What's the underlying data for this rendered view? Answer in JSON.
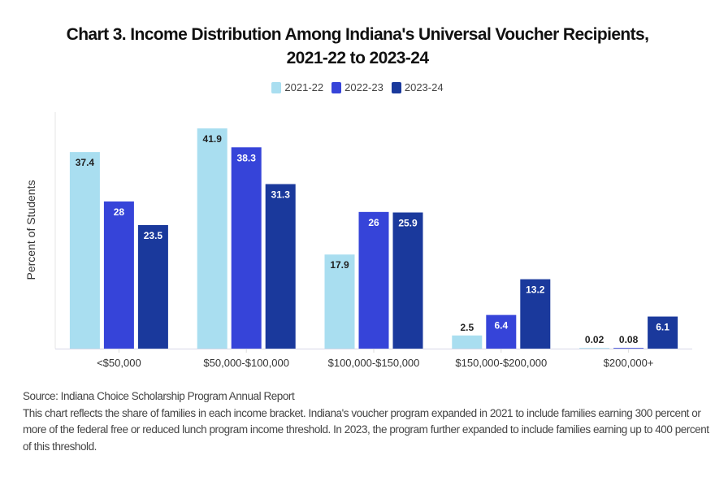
{
  "chart_data": {
    "type": "bar",
    "title": "Chart 3. Income Distribution Among Indiana's Universal Voucher Recipients, 2021-22 to 2023-24",
    "title_lines": [
      "Chart 3. Income Distribution Among Indiana's Universal Voucher Recipients,",
      "2021-22 to 2023-24"
    ],
    "xlabel": "",
    "ylabel": "Percent of Students",
    "ylim": [
      0,
      45
    ],
    "grid": false,
    "legend_placement": "top-center",
    "categories": [
      "<$50,000",
      "$50,000-$100,000",
      "$100,000-$150,000",
      "$150,000-$200,000",
      "$200,000+"
    ],
    "series": [
      {
        "name": "2021-22",
        "color": "#a9def0",
        "values": [
          37.4,
          41.9,
          17.9,
          2.5,
          0.02
        ],
        "labels": [
          "37.4",
          "41.9",
          "17.9",
          "2.5",
          "0.02"
        ]
      },
      {
        "name": "2022-23",
        "color": "#3644d9",
        "values": [
          28,
          38.3,
          26,
          6.4,
          0.08
        ],
        "labels": [
          "28",
          "38.3",
          "26",
          "6.4",
          "0.08"
        ]
      },
      {
        "name": "2023-24",
        "color": "#1a399c",
        "values": [
          23.5,
          31.3,
          25.9,
          13.2,
          6.1
        ],
        "labels": [
          "23.5",
          "31.3",
          "25.9",
          "13.2",
          "6.1"
        ]
      }
    ]
  },
  "notes": {
    "source": "Source: Indiana Choice Scholarship Program Annual Report",
    "description": "This chart reflects the share of families in each income bracket. Indiana's voucher program expanded in 2021 to include families earning 300 percent or more of the federal free or reduced lunch program income threshold. In 2023, the program further expanded to include families earning up to 400 percent of this threshold."
  }
}
